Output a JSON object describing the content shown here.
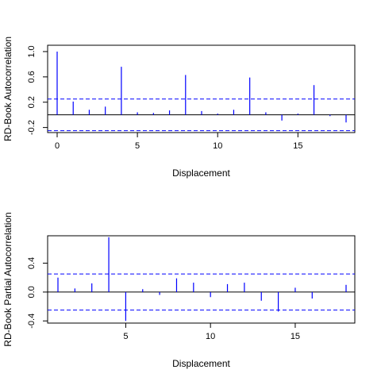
{
  "chart_data": [
    {
      "type": "bar",
      "xlabel": "Displacement",
      "ylabel": "RD-Book Autocorrelation",
      "xlim": [
        0,
        18
      ],
      "ylim": [
        -0.28,
        1.1
      ],
      "x_ticks": [
        0,
        5,
        10,
        15
      ],
      "y_ticks": [
        -0.2,
        0.2,
        0.6,
        1.0
      ],
      "y_tick_labels": [
        "-0.2",
        "0.2",
        "0.6",
        "1.0"
      ],
      "confidence_bound": 0.25,
      "zero_line": true,
      "x": [
        0,
        1,
        2,
        3,
        4,
        5,
        6,
        7,
        8,
        9,
        10,
        11,
        12,
        13,
        14,
        15,
        16,
        17,
        18
      ],
      "values": [
        1.0,
        0.21,
        0.08,
        0.13,
        0.76,
        0.04,
        0.03,
        0.07,
        0.63,
        0.06,
        0.02,
        0.08,
        0.59,
        0.04,
        -0.09,
        0.02,
        0.47,
        -0.02,
        -0.12
      ],
      "bar_color": "#0000ff",
      "bound_color": "#0000ff"
    },
    {
      "type": "bar",
      "xlabel": "Displacement",
      "ylabel": "RD-Book Partial Autocorrelation",
      "xlim": [
        1,
        18
      ],
      "ylim": [
        -0.43,
        0.78
      ],
      "x_ticks": [
        5,
        10,
        15
      ],
      "y_ticks": [
        -0.4,
        0.0,
        0.4
      ],
      "y_tick_labels": [
        "-0.4",
        "0.0",
        "0.4"
      ],
      "confidence_bound": 0.25,
      "zero_line": true,
      "x": [
        1,
        2,
        3,
        4,
        5,
        6,
        7,
        8,
        9,
        10,
        11,
        12,
        13,
        14,
        15,
        16,
        17,
        18
      ],
      "values": [
        0.2,
        0.05,
        0.12,
        0.76,
        -0.4,
        0.04,
        -0.04,
        0.19,
        0.13,
        -0.07,
        0.11,
        0.13,
        -0.12,
        -0.27,
        0.06,
        -0.09,
        0.0,
        0.1
      ],
      "bar_color": "#0000ff",
      "bound_color": "#0000ff"
    }
  ]
}
